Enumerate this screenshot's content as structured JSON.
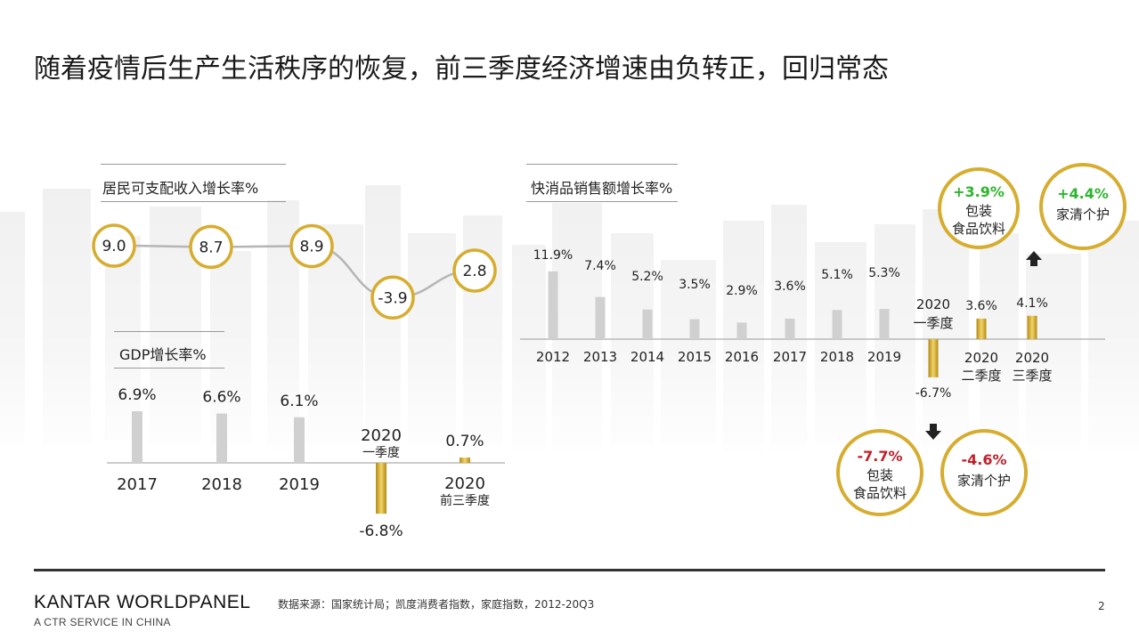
{
  "title": "随着疫情后生产生活秩序的恢复，前三季度经济增速由负转正，回归常态",
  "colors": {
    "gold": "#d6ad2f",
    "gold_dark": "#b58a12",
    "gray_bar": "#d0d0d0",
    "line": "#b5b5b5",
    "green": "#2db52d",
    "red": "#c0202a"
  },
  "chart_data": [
    {
      "type": "line",
      "title": "居民可支配收入增长率%",
      "x": [
        "2017",
        "2018",
        "2019",
        "2020一季度",
        "2020前三季度"
      ],
      "values": [
        9.0,
        8.7,
        8.9,
        -3.9,
        2.8
      ],
      "labels": [
        "9.0",
        "8.7",
        "8.9",
        "-3.9",
        "2.8"
      ]
    },
    {
      "type": "bar",
      "title": "GDP增长率%",
      "categories": [
        [
          "2017"
        ],
        [
          "2018"
        ],
        [
          "2019"
        ],
        [
          "2020",
          "一季度"
        ],
        [
          "2020",
          "前三季度"
        ]
      ],
      "values": [
        6.9,
        6.6,
        6.1,
        -6.8,
        0.7
      ],
      "labels": [
        "6.9%",
        "6.6%",
        "6.1%",
        "-6.8%",
        "0.7%"
      ],
      "highlight": [
        false,
        false,
        false,
        true,
        true
      ]
    },
    {
      "type": "bar",
      "title": "快消品销售额增长率%",
      "categories": [
        [
          "2012"
        ],
        [
          "2013"
        ],
        [
          "2014"
        ],
        [
          "2015"
        ],
        [
          "2016"
        ],
        [
          "2017"
        ],
        [
          "2018"
        ],
        [
          "2019"
        ],
        [
          "2020",
          "一季度"
        ],
        [
          "2020",
          "二季度"
        ],
        [
          "2020",
          "三季度"
        ]
      ],
      "values": [
        11.9,
        7.4,
        5.2,
        3.5,
        2.9,
        3.6,
        5.1,
        5.3,
        -6.7,
        3.6,
        4.1
      ],
      "labels": [
        "11.9%",
        "7.4%",
        "5.2%",
        "3.5%",
        "2.9%",
        "3.6%",
        "5.1%",
        "5.3%",
        "-6.7%",
        "3.6%",
        "4.1%"
      ],
      "highlight": [
        false,
        false,
        false,
        false,
        false,
        false,
        false,
        false,
        true,
        true,
        true
      ],
      "callouts": [
        {
          "value": "+3.9%",
          "label": [
            "包装",
            "食品饮料"
          ],
          "tone": "green"
        },
        {
          "value": "+4.4%",
          "label": [
            "家清个护"
          ],
          "tone": "green"
        },
        {
          "value": "-7.7%",
          "label": [
            "包装",
            "食品饮料"
          ],
          "tone": "red"
        },
        {
          "value": "-4.6%",
          "label": [
            "家清个护"
          ],
          "tone": "red"
        }
      ]
    }
  ],
  "footer": {
    "brand": "KANTAR WORLDPANEL",
    "brand_sub": "A CTR SERVICE IN CHINA",
    "source": "数据来源：国家统计局；凯度消费者指数，家庭指数，2012-20Q3",
    "page": "2"
  }
}
